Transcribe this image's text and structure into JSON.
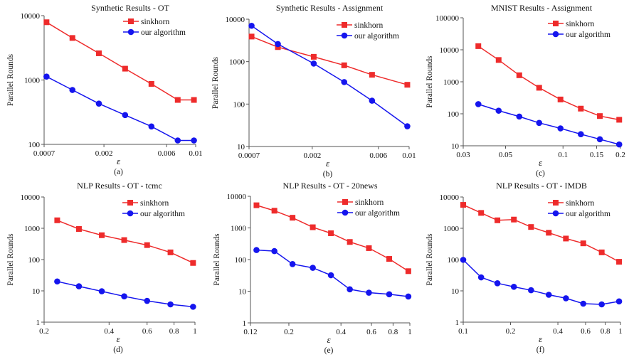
{
  "colors": {
    "sinkhorn": "#ee2b2b",
    "ours": "#1515ee",
    "axis": "#555555"
  },
  "legend": {
    "sinkhorn": "sinkhorn",
    "ours": "our algorithm"
  },
  "chart_data": [
    {
      "type": "line",
      "panel": "(a)",
      "title": "Synthetic Results - OT",
      "xlabel": "ε",
      "ylabel": "Parallel Rounds",
      "xscale": "log",
      "yscale": "log",
      "xlim": [
        0.0007,
        0.01
      ],
      "ylim": [
        100,
        10000
      ],
      "xticks": [
        0.0007,
        0.002,
        0.006,
        0.01
      ],
      "xtick_labels": [
        "0.0007",
        "0.002",
        "0.006",
        "0.01"
      ],
      "yticks": [
        100,
        1000,
        10000
      ],
      "ytick_labels": [
        "100",
        "1000",
        "10000"
      ],
      "legend_position": "top-right",
      "series": [
        {
          "name": "sinkhorn",
          "marker": "square",
          "x": [
            0.00073,
            0.00115,
            0.00183,
            0.0029,
            0.0046,
            0.0073,
            0.0097
          ],
          "y": [
            7900,
            4500,
            2600,
            1500,
            870,
            490,
            490
          ]
        },
        {
          "name": "our algorithm",
          "marker": "circle",
          "x": [
            0.00073,
            0.00115,
            0.00183,
            0.0029,
            0.0046,
            0.0073,
            0.0097
          ],
          "y": [
            1130,
            700,
            430,
            285,
            190,
            115,
            115
          ]
        }
      ]
    },
    {
      "type": "line",
      "panel": "(b)",
      "title": "Synthetic Results - Assignment",
      "xlabel": "ε",
      "ylabel": "Parallel Rounds",
      "xscale": "log",
      "yscale": "log",
      "xlim": [
        0.0007,
        0.01
      ],
      "ylim": [
        10,
        10000
      ],
      "xticks": [
        0.0007,
        0.002,
        0.006,
        0.01
      ],
      "xtick_labels": [
        "0.0007",
        "0.002",
        "0.006",
        "0.01"
      ],
      "yticks": [
        10,
        100,
        1000,
        10000
      ],
      "ytick_labels": [
        "10",
        "100",
        "1000",
        "10000"
      ],
      "legend_position": "top-right",
      "series": [
        {
          "name": "sinkhorn",
          "marker": "square",
          "x": [
            0.00073,
            0.00113,
            0.00205,
            0.0034,
            0.0054,
            0.0097
          ],
          "y": [
            3900,
            2200,
            1300,
            820,
            490,
            285
          ]
        },
        {
          "name": "our algorithm",
          "marker": "circle",
          "x": [
            0.00073,
            0.00113,
            0.00205,
            0.0034,
            0.0054,
            0.0097
          ],
          "y": [
            7000,
            2600,
            900,
            330,
            120,
            30
          ]
        }
      ]
    },
    {
      "type": "line",
      "panel": "(c)",
      "title": "MNIST Results - Assignment",
      "xlabel": "ε",
      "ylabel": "Parallel Rounds",
      "xscale": "log",
      "yscale": "log",
      "xlim": [
        0.03,
        0.2
      ],
      "ylim": [
        10,
        100000
      ],
      "xticks": [
        0.03,
        0.05,
        0.1,
        0.15,
        0.2
      ],
      "xtick_labels": [
        "0.03",
        "0.05",
        "0.1",
        "0.15",
        "0.2"
      ],
      "yticks": [
        10,
        100,
        1000,
        10000,
        100000
      ],
      "ytick_labels": [
        "10",
        "100",
        "1000",
        "10000",
        "100000"
      ],
      "legend_position": "top-right",
      "series": [
        {
          "name": "sinkhorn",
          "marker": "square",
          "x": [
            0.036,
            0.046,
            0.059,
            0.075,
            0.097,
            0.124,
            0.156,
            0.197
          ],
          "y": [
            13000,
            4800,
            1600,
            650,
            280,
            145,
            85,
            65
          ]
        },
        {
          "name": "our algorithm",
          "marker": "circle",
          "x": [
            0.036,
            0.046,
            0.059,
            0.075,
            0.097,
            0.124,
            0.156,
            0.197
          ],
          "y": [
            200,
            125,
            82,
            52,
            35,
            23,
            16,
            11
          ]
        }
      ]
    },
    {
      "type": "line",
      "panel": "(d)",
      "title": "NLP Results - OT - tcmc",
      "xlabel": "ε",
      "ylabel": "Parallel Rounds",
      "xscale": "log",
      "yscale": "log",
      "xlim": [
        0.2,
        1
      ],
      "ylim": [
        1,
        10000
      ],
      "xticks": [
        0.2,
        0.4,
        0.6,
        0.8,
        1
      ],
      "xtick_labels": [
        "0.2",
        "0.4",
        "0.6",
        "0.8",
        "1"
      ],
      "yticks": [
        1,
        10,
        100,
        1000,
        10000
      ],
      "ytick_labels": [
        "1",
        "10",
        "100",
        "1000",
        "10000"
      ],
      "legend_position": "top-right",
      "series": [
        {
          "name": "sinkhorn",
          "marker": "square",
          "x": [
            0.23,
            0.29,
            0.37,
            0.47,
            0.6,
            0.77,
            0.98
          ],
          "y": [
            1800,
            950,
            600,
            420,
            290,
            170,
            78
          ]
        },
        {
          "name": "our algorithm",
          "marker": "circle",
          "x": [
            0.23,
            0.29,
            0.37,
            0.47,
            0.6,
            0.77,
            0.98
          ],
          "y": [
            20,
            14,
            9.7,
            6.7,
            4.8,
            3.7,
            3.1
          ]
        }
      ]
    },
    {
      "type": "line",
      "panel": "(e)",
      "title": "NLP Results - OT - 20news",
      "xlabel": "ε",
      "ylabel": "Parallel Rounds",
      "xscale": "log",
      "yscale": "log",
      "xlim": [
        0.12,
        1
      ],
      "ylim": [
        1,
        10000
      ],
      "xticks": [
        0.12,
        0.2,
        0.4,
        0.6,
        0.8,
        1
      ],
      "xtick_labels": [
        "0.12",
        "0.2",
        "0.4",
        "0.6",
        "0.8",
        "1"
      ],
      "yticks": [
        1,
        10,
        100,
        1000,
        10000
      ],
      "ytick_labels": [
        "1",
        "10",
        "100",
        "1000",
        "10000"
      ],
      "legend_position": "top-right",
      "series": [
        {
          "name": "sinkhorn",
          "marker": "square",
          "x": [
            0.13,
            0.165,
            0.21,
            0.275,
            0.35,
            0.45,
            0.58,
            0.76,
            0.98
          ],
          "y": [
            5200,
            3500,
            2100,
            1050,
            680,
            360,
            230,
            105,
            43
          ]
        },
        {
          "name": "our algorithm",
          "marker": "circle",
          "x": [
            0.13,
            0.165,
            0.21,
            0.275,
            0.35,
            0.45,
            0.58,
            0.76,
            0.98
          ],
          "y": [
            200,
            185,
            72,
            55,
            32,
            11.5,
            9,
            8,
            6.8
          ]
        }
      ]
    },
    {
      "type": "line",
      "panel": "(f)",
      "title": "NLP Results - OT - IMDB",
      "xlabel": "ε",
      "ylabel": "Parallel Rounds",
      "xscale": "log",
      "yscale": "log",
      "xlim": [
        0.1,
        1
      ],
      "ylim": [
        1,
        10000
      ],
      "xticks": [
        0.1,
        0.2,
        0.4,
        0.6,
        0.8,
        1
      ],
      "xtick_labels": [
        "0.1",
        "0.2",
        "0.4",
        "0.6",
        "0.8",
        "1"
      ],
      "yticks": [
        1,
        10,
        100,
        1000,
        10000
      ],
      "ytick_labels": [
        "1",
        "10",
        "100",
        "1000",
        "10000"
      ],
      "legend_position": "top-right",
      "series": [
        {
          "name": "sinkhorn",
          "marker": "square",
          "x": [
            0.1,
            0.13,
            0.165,
            0.21,
            0.27,
            0.35,
            0.45,
            0.58,
            0.76,
            0.98
          ],
          "y": [
            5600,
            3100,
            1800,
            1900,
            1100,
            720,
            470,
            330,
            170,
            85
          ]
        },
        {
          "name": "our algorithm",
          "marker": "circle",
          "x": [
            0.1,
            0.13,
            0.165,
            0.21,
            0.27,
            0.35,
            0.45,
            0.58,
            0.76,
            0.98
          ],
          "y": [
            98,
            27,
            17.5,
            13.5,
            10.5,
            7.5,
            5.8,
            3.9,
            3.7,
            4.6
          ]
        }
      ]
    }
  ]
}
